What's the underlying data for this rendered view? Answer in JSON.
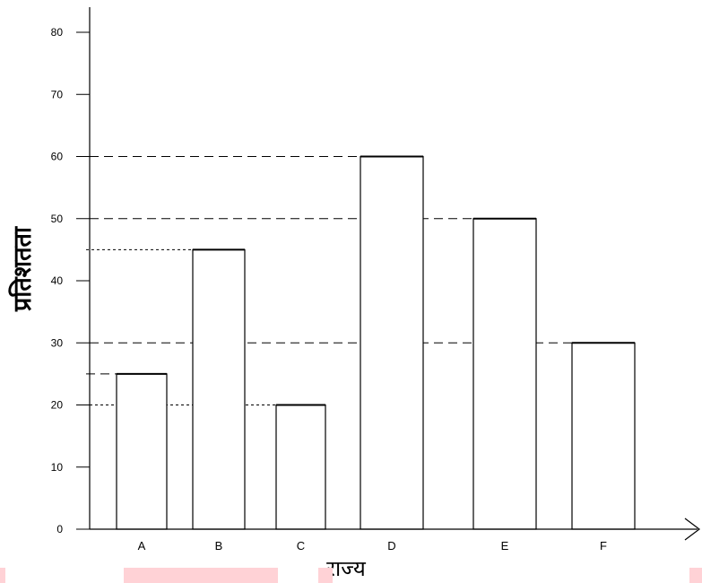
{
  "chart_data": {
    "type": "bar",
    "categories": [
      "A",
      "B",
      "C",
      "D",
      "E",
      "F"
    ],
    "values": [
      25,
      45,
      20,
      60,
      50,
      30
    ],
    "xlabel": "राज्य",
    "ylabel": "प्रतिशतता",
    "ylim": [
      0,
      80
    ],
    "yticks": [
      0,
      10,
      20,
      30,
      40,
      50,
      60,
      70,
      80
    ],
    "reference_lines": [
      25,
      45,
      20,
      60,
      50,
      30
    ],
    "grid": false,
    "bar_fill": "#ffffff",
    "bar_stroke": "#000000"
  },
  "colors": {
    "highlight": "#ffd2d6"
  }
}
